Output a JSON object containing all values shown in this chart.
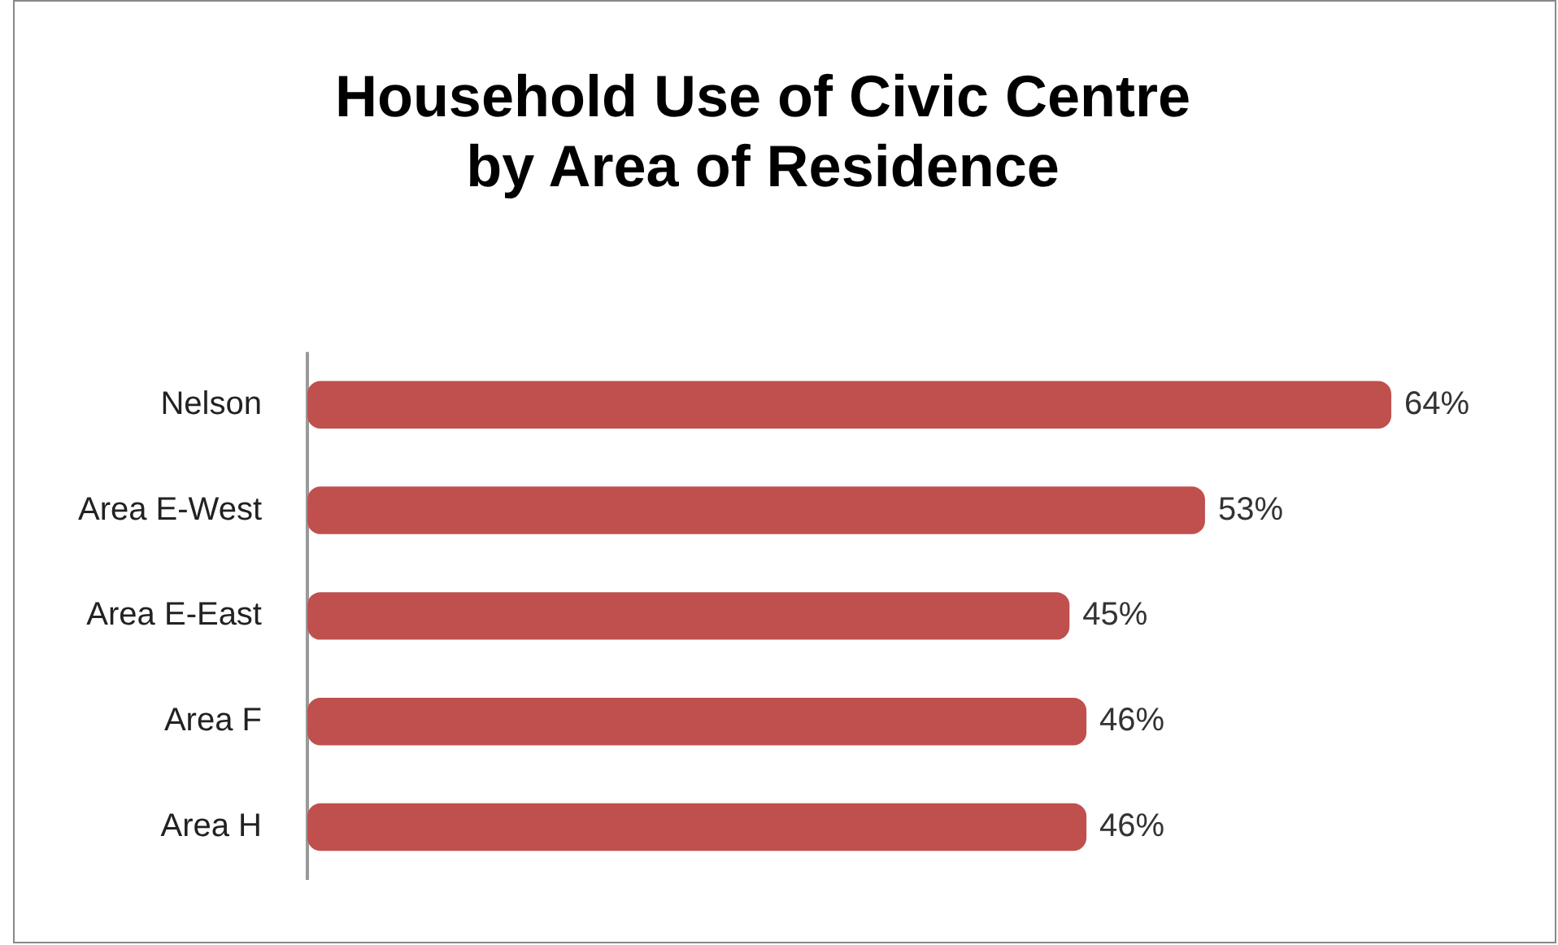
{
  "chart_data": {
    "type": "bar",
    "orientation": "horizontal",
    "title": "Household Use of Civic Centre\nby Area of Residence",
    "categories": [
      "Nelson",
      "Area E-West",
      "Area E-East",
      "Area F",
      "Area H"
    ],
    "values": [
      64,
      53,
      45,
      46,
      46
    ],
    "value_labels": [
      "64%",
      "53%",
      "45%",
      "46%",
      "46%"
    ],
    "color": "#c0504d",
    "tick_labels": "y",
    "legend": false
  }
}
